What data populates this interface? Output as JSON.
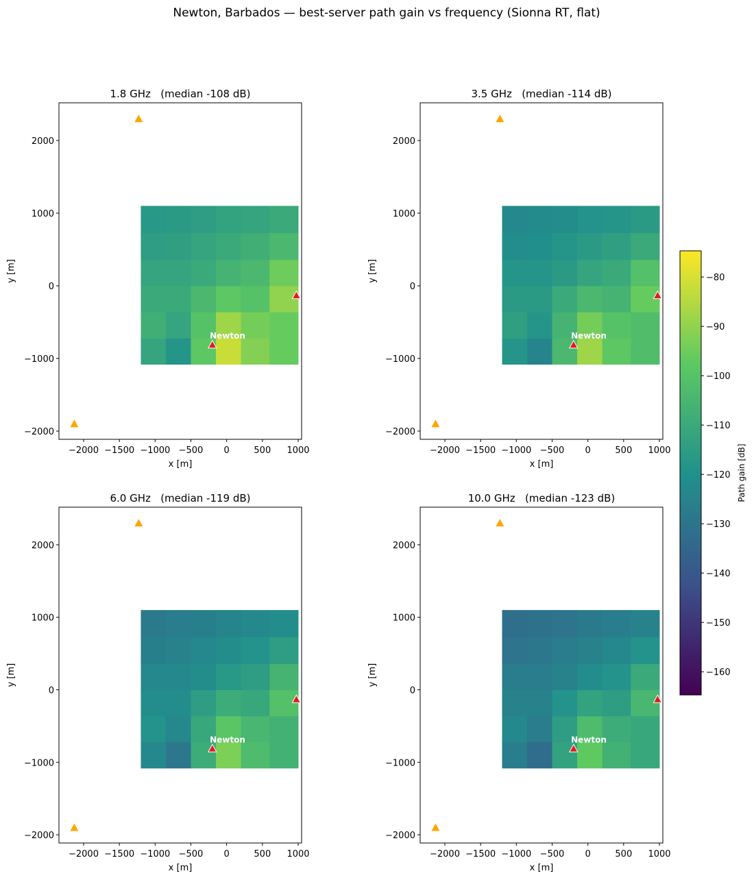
{
  "title": "Newton, Barbados — best-server path gain vs frequency (Sionna RT, flat)",
  "colorbar": {
    "label": "Path gain [dB]",
    "colormap": "viridis",
    "lim": [
      -164.7,
      -74.7
    ],
    "ticks": [
      {
        "value": -80,
        "label": "−80"
      },
      {
        "value": -90,
        "label": "−90"
      },
      {
        "value": -100,
        "label": "−100"
      },
      {
        "value": -110,
        "label": "−110"
      },
      {
        "value": -120,
        "label": "−120"
      },
      {
        "value": -130,
        "label": "−130"
      },
      {
        "value": -140,
        "label": "−140"
      },
      {
        "value": -150,
        "label": "−150"
      },
      {
        "value": -160,
        "label": "−160"
      }
    ]
  },
  "chart_data": [
    {
      "type": "heatmap",
      "title": "1.8 GHz   (median -108 dB)",
      "xlabel": "x [m]",
      "ylabel": "y [m]",
      "xlim": [
        -2345,
        1048
      ],
      "ylim": [
        -2113,
        2519
      ],
      "xticks": [
        {
          "value": -2000,
          "label": "−2000"
        },
        {
          "value": -1500,
          "label": "−1500"
        },
        {
          "value": -1000,
          "label": "−1000"
        },
        {
          "value": -500,
          "label": "−500"
        },
        0,
        500,
        1000
      ],
      "yticks": [
        {
          "value": -2000,
          "label": "−2000"
        },
        {
          "value": -1000,
          "label": "−1000"
        },
        0,
        1000,
        2000
      ],
      "x_edges": [
        -1200,
        -850,
        -500,
        -150,
        200,
        600,
        1000
      ],
      "y_edges": [
        -1080,
        -720,
        -360,
        0,
        360,
        730,
        1100
      ],
      "values": [
        [
          -112,
          -118,
          -98,
          -82,
          -92,
          -96
        ],
        [
          -108,
          -112,
          -100,
          -88,
          -94,
          -96
        ],
        [
          -110,
          -110,
          -104,
          -98,
          -100,
          -90
        ],
        [
          -112,
          -112,
          -110,
          -106,
          -104,
          -95
        ],
        [
          -115,
          -114,
          -112,
          -110,
          -108,
          -104
        ],
        [
          -117,
          -116,
          -115,
          -113,
          -112,
          -110
        ]
      ],
      "series": [
        {
          "color": "#ffa500",
          "x": [
            -1230,
            -2130
          ],
          "y": [
            2300,
            -1900
          ]
        },
        {
          "color": "#e31a1c",
          "x": [
            -200,
            975
          ],
          "y": [
            -810,
            -130
          ]
        }
      ],
      "annotation": {
        "text": "Newton",
        "x": -120,
        "y": -690
      }
    },
    {
      "type": "heatmap",
      "title": "3.5 GHz   (median -114 dB)",
      "xlabel": "x [m]",
      "ylabel": "y [m]",
      "xlim": [
        -2345,
        1048
      ],
      "ylim": [
        -2113,
        2519
      ],
      "xticks": [
        {
          "value": -2000,
          "label": "−2000"
        },
        {
          "value": -1500,
          "label": "−1500"
        },
        {
          "value": -1000,
          "label": "−1000"
        },
        {
          "value": -500,
          "label": "−500"
        },
        0,
        500,
        1000
      ],
      "yticks": [
        {
          "value": -2000,
          "label": "−2000"
        },
        {
          "value": -1000,
          "label": "−1000"
        },
        0,
        1000,
        2000
      ],
      "x_edges": [
        -1200,
        -850,
        -500,
        -150,
        200,
        600,
        1000
      ],
      "y_edges": [
        -1080,
        -720,
        -360,
        0,
        360,
        730,
        1100
      ],
      "values": [
        [
          -118,
          -124,
          -104,
          -88,
          -98,
          -102
        ],
        [
          -114,
          -118,
          -106,
          -94,
          -100,
          -102
        ],
        [
          -116,
          -116,
          -110,
          -104,
          -106,
          -96
        ],
        [
          -118,
          -118,
          -116,
          -112,
          -110,
          -101
        ],
        [
          -121,
          -120,
          -118,
          -116,
          -114,
          -110
        ],
        [
          -123,
          -122,
          -121,
          -119,
          -118,
          -116
        ]
      ],
      "series": [
        {
          "color": "#ffa500",
          "x": [
            -1230,
            -2130
          ],
          "y": [
            2300,
            -1900
          ]
        },
        {
          "color": "#e31a1c",
          "x": [
            -200,
            975
          ],
          "y": [
            -810,
            -130
          ]
        }
      ],
      "annotation": {
        "text": "Newton",
        "x": -120,
        "y": -690
      }
    },
    {
      "type": "heatmap",
      "title": "6.0 GHz   (median -119 dB)",
      "xlabel": "x [m]",
      "ylabel": "y [m]",
      "xlim": [
        -2345,
        1048
      ],
      "ylim": [
        -2113,
        2519
      ],
      "xticks": [
        {
          "value": -2000,
          "label": "−2000"
        },
        {
          "value": -1500,
          "label": "−1500"
        },
        {
          "value": -1000,
          "label": "−1000"
        },
        {
          "value": -500,
          "label": "−500"
        },
        0,
        500,
        1000
      ],
      "yticks": [
        {
          "value": -2000,
          "label": "−2000"
        },
        {
          "value": -1000,
          "label": "−1000"
        },
        0,
        1000,
        2000
      ],
      "x_edges": [
        -1200,
        -850,
        -500,
        -150,
        200,
        600,
        1000
      ],
      "y_edges": [
        -1080,
        -720,
        -360,
        0,
        360,
        730,
        1100
      ],
      "values": [
        [
          -123,
          -129,
          -109,
          -93,
          -103,
          -107
        ],
        [
          -119,
          -123,
          -111,
          -99,
          -105,
          -107
        ],
        [
          -121,
          -121,
          -115,
          -109,
          -111,
          -101
        ],
        [
          -123,
          -123,
          -121,
          -117,
          -115,
          -106
        ],
        [
          -126,
          -125,
          -123,
          -121,
          -119,
          -115
        ],
        [
          -128,
          -127,
          -126,
          -124,
          -123,
          -121
        ]
      ],
      "series": [
        {
          "color": "#ffa500",
          "x": [
            -1230,
            -2130
          ],
          "y": [
            2300,
            -1900
          ]
        },
        {
          "color": "#e31a1c",
          "x": [
            -200,
            975
          ],
          "y": [
            -810,
            -130
          ]
        }
      ],
      "annotation": {
        "text": "Newton",
        "x": -120,
        "y": -690
      }
    },
    {
      "type": "heatmap",
      "title": "10.0 GHz   (median -123 dB)",
      "xlabel": "x [m]",
      "ylabel": "y [m]",
      "xlim": [
        -2345,
        1048
      ],
      "ylim": [
        -2113,
        2519
      ],
      "xticks": [
        {
          "value": -2000,
          "label": "−2000"
        },
        {
          "value": -1500,
          "label": "−1500"
        },
        {
          "value": -1000,
          "label": "−1000"
        },
        {
          "value": -500,
          "label": "−500"
        },
        0,
        500,
        1000
      ],
      "yticks": [
        {
          "value": -2000,
          "label": "−2000"
        },
        {
          "value": -1000,
          "label": "−1000"
        },
        0,
        1000,
        2000
      ],
      "x_edges": [
        -1200,
        -850,
        -500,
        -150,
        200,
        600,
        1000
      ],
      "y_edges": [
        -1080,
        -720,
        -360,
        0,
        360,
        730,
        1100
      ],
      "values": [
        [
          -127,
          -133,
          -113,
          -97,
          -107,
          -111
        ],
        [
          -123,
          -127,
          -115,
          -103,
          -109,
          -111
        ],
        [
          -125,
          -125,
          -119,
          -113,
          -115,
          -105
        ],
        [
          -127,
          -127,
          -125,
          -121,
          -119,
          -110
        ],
        [
          -130,
          -129,
          -127,
          -125,
          -123,
          -119
        ],
        [
          -132,
          -131,
          -130,
          -128,
          -127,
          -125
        ]
      ],
      "series": [
        {
          "color": "#ffa500",
          "x": [
            -1230,
            -2130
          ],
          "y": [
            2300,
            -1900
          ]
        },
        {
          "color": "#e31a1c",
          "x": [
            -200,
            975
          ],
          "y": [
            -810,
            -130
          ]
        }
      ],
      "annotation": {
        "text": "Newton",
        "x": -120,
        "y": -690
      }
    }
  ]
}
